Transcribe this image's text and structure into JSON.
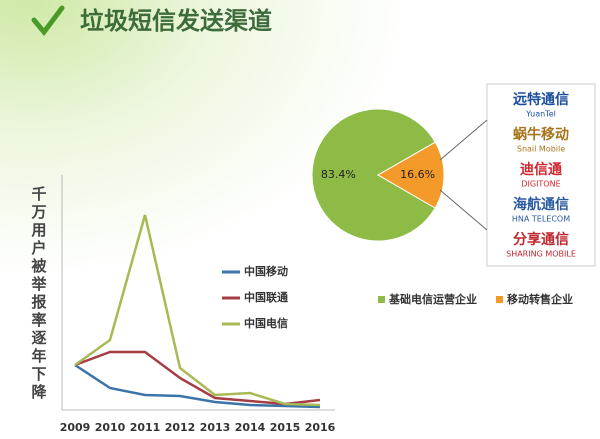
{
  "title": "垃圾短信发送渠道",
  "chart_data": [
    {
      "type": "line",
      "ylabel": "千万用户被举报率逐年下降",
      "categories": [
        "2009",
        "2010",
        "2011",
        "2012",
        "2013",
        "2014",
        "2015",
        "2016"
      ],
      "series": [
        {
          "name": "中国移动",
          "color": "#3b74a8",
          "values": [
            22.5,
            11,
            7.5,
            7,
            4,
            2.5,
            2,
            1.5
          ]
        },
        {
          "name": "中国联通",
          "color": "#a63d45",
          "values": [
            22.5,
            29,
            29,
            16,
            6,
            4.5,
            3,
            5
          ]
        },
        {
          "name": "中国电信",
          "color": "#a8b955",
          "values": [
            22.5,
            35,
            97.5,
            21,
            7.5,
            8.5,
            3,
            2.5
          ]
        }
      ]
    },
    {
      "type": "pie",
      "categories": [
        "基础电信运营企业",
        "移动转售企业"
      ],
      "values": [
        83.4,
        16.6
      ],
      "value_labels": [
        "83.4%",
        "16.6%"
      ],
      "colors": [
        "#8dbb45",
        "#f39a2b"
      ]
    }
  ],
  "logos": [
    {
      "name": "远特通信",
      "sub": "YuanTel"
    },
    {
      "name": "蜗牛移动",
      "sub": "Snail Mobile"
    },
    {
      "name": "迪信通",
      "sub": "DIGITONE"
    },
    {
      "name": "海航通信",
      "sub": "HNA TELECOM"
    },
    {
      "name": "分享通信",
      "sub": "SHARING MOBILE"
    }
  ]
}
